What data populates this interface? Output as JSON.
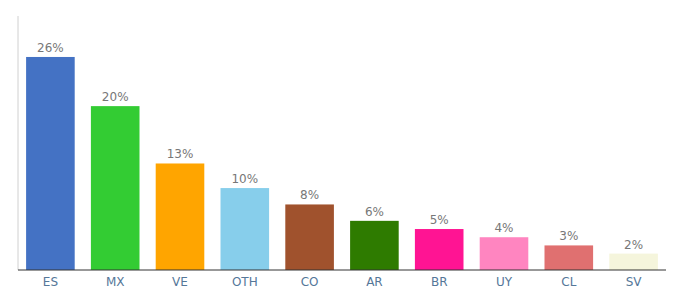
{
  "chart_data": {
    "type": "bar",
    "categories": [
      "ES",
      "MX",
      "VE",
      "OTH",
      "CO",
      "AR",
      "BR",
      "UY",
      "CL",
      "SV"
    ],
    "values": [
      26,
      20,
      13,
      10,
      8,
      6,
      5,
      4,
      3,
      2
    ],
    "value_labels": [
      "26%",
      "20%",
      "13%",
      "10%",
      "8%",
      "6%",
      "5%",
      "4%",
      "3%",
      "2%"
    ],
    "colors": [
      "#4472C4",
      "#33CC33",
      "#FFA500",
      "#87CEEB",
      "#A0522D",
      "#2E7B00",
      "#FF1493",
      "#FF85C0",
      "#E07070",
      "#F5F5DC"
    ],
    "ylim": [
      0,
      31
    ],
    "data_labels": true,
    "tick_labels": "x"
  }
}
